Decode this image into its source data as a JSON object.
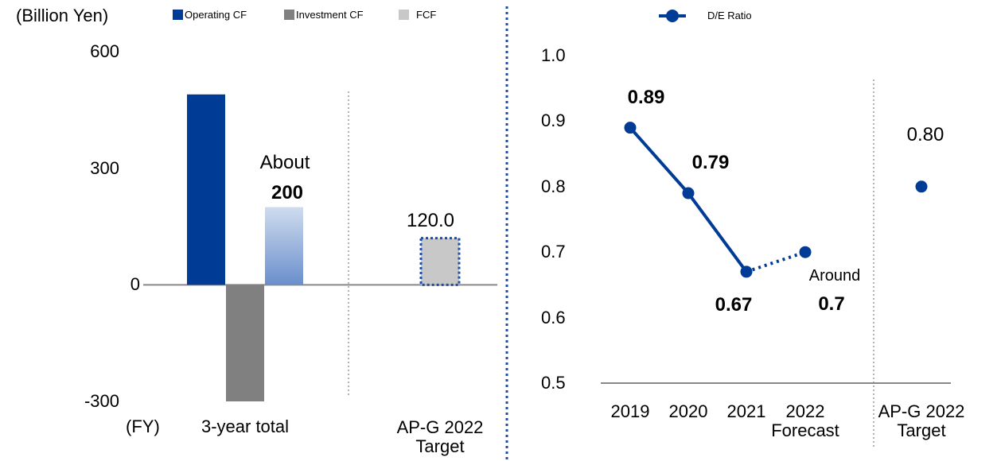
{
  "chart_data": [
    {
      "type": "bar",
      "y_label": "(Billion Yen)",
      "x_label": "(FY)",
      "categories": [
        "3-year total",
        "AP-G 2022 Target"
      ],
      "series": [
        {
          "name": "Operating CF",
          "color": "#003c96",
          "values": [
            490,
            null
          ]
        },
        {
          "name": "Investment CF",
          "color": "#808080",
          "values": [
            -300,
            null
          ]
        },
        {
          "name": "FCF",
          "color": "#c8c8c8",
          "values": [
            200,
            120
          ],
          "value_labels": [
            "200",
            "120.0"
          ]
        }
      ],
      "annotations": [
        "About"
      ],
      "ylim": [
        -300,
        600
      ],
      "yticks": [
        -300,
        0,
        300,
        600
      ]
    },
    {
      "type": "line",
      "categories": [
        "2019",
        "2020",
        "2021",
        "2022 Forecast",
        "AP-G 2022 Target"
      ],
      "series": [
        {
          "name": "D/E Ratio",
          "color": "#003c96",
          "values": [
            0.89,
            0.79,
            0.67,
            0.7,
            0.8
          ],
          "value_labels": [
            "0.89",
            "0.79",
            "0.67",
            "0.7",
            "0.80"
          ]
        }
      ],
      "annotations": [
        "Around"
      ],
      "ylim": [
        0.5,
        1
      ],
      "yticks": [
        0.5,
        0.6,
        0.7,
        0.8,
        0.9,
        {
          "value": 1,
          "label": "1.0"
        }
      ]
    }
  ]
}
